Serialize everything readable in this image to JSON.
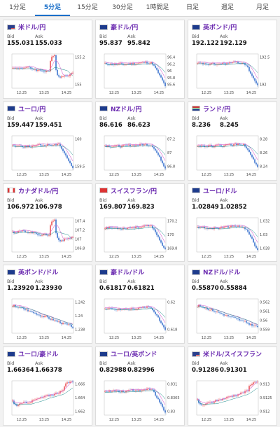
{
  "tabs": [
    "1分足",
    "5分足",
    "15分足",
    "30分足",
    "1時間足",
    "日足",
    "週足",
    "月足"
  ],
  "active_tab": 1,
  "labels": {
    "bid": "Bid",
    "ask": "Ask"
  },
  "colors": {
    "up": "#e8383d",
    "down": "#1f5fc8",
    "ma1": "#d96bd0",
    "ma2": "#1a8a8a",
    "accent": "#1a6fc9",
    "pair_text": "#6b2bb0"
  },
  "cards": [
    {
      "pair": "米ドル/円",
      "flag": "us",
      "bid": "155.031",
      "ask": "155.033",
      "yticks": [
        "155.2",
        "155"
      ],
      "xticks": [
        "12:25",
        "13:25",
        "14:25"
      ],
      "shape": "spike_drop"
    },
    {
      "pair": "豪ドル/円",
      "flag": "au",
      "bid": "95.837",
      "ask": "95.842",
      "yticks": [
        "96.4",
        "96.2",
        "96",
        "95.8",
        "95.6"
      ],
      "xticks": [
        "12:25",
        "13:25",
        "14:25"
      ],
      "shape": "drop"
    },
    {
      "pair": "英ポンド/円",
      "flag": "gb",
      "bid": "192.122",
      "ask": "192.129",
      "yticks": [
        "192.5",
        "192"
      ],
      "xticks": [
        "12:25",
        "13:25",
        "14:25"
      ],
      "shape": "drop"
    },
    {
      "pair": "ユーロ/円",
      "flag": "eu",
      "bid": "159.447",
      "ask": "159.451",
      "yticks": [
        "160",
        "159.5"
      ],
      "xticks": [
        "12:25",
        "13:25",
        "14:25"
      ],
      "shape": "drop"
    },
    {
      "pair": "NZドル/円",
      "flag": "nz",
      "bid": "86.616",
      "ask": "86.623",
      "yticks": [
        "87.2",
        "87",
        "86.8"
      ],
      "xticks": [
        "12:25",
        "13:25",
        "14:25"
      ],
      "shape": "drop"
    },
    {
      "pair": "ランド/円",
      "flag": "za",
      "bid": "8.236",
      "ask": "8.245",
      "yticks": [
        "8.28",
        "8.26",
        "8.24"
      ],
      "xticks": [
        "12:25",
        "13:25",
        "14:25"
      ],
      "shape": "drop"
    },
    {
      "pair": "カナダドル/円",
      "flag": "ca",
      "bid": "106.972",
      "ask": "106.978",
      "yticks": [
        "107.4",
        "107.2",
        "107",
        "106.8"
      ],
      "xticks": [
        "12:25",
        "13:25",
        "14:25"
      ],
      "shape": "spike_drop"
    },
    {
      "pair": "スイスフラン/円",
      "flag": "ch",
      "bid": "169.807",
      "ask": "169.823",
      "yticks": [
        "170.2",
        "170",
        "169.8"
      ],
      "xticks": [
        "12:25",
        "13:25",
        "14:25"
      ],
      "shape": "drop"
    },
    {
      "pair": "ユーロ/ドル",
      "flag": "eu",
      "bid": "1.02849",
      "ask": "1.02852",
      "yticks": [
        "1.032",
        "1.03",
        "1.028"
      ],
      "xticks": [
        "12:25",
        "13:25",
        "14:25"
      ],
      "shape": "drop"
    },
    {
      "pair": "英ポンド/ドル",
      "flag": "gb",
      "bid": "1.23920",
      "ask": "1.23930",
      "yticks": [
        "1.242",
        "1.24",
        "1.238"
      ],
      "xticks": [
        "12:25",
        "13:25",
        "14:25"
      ],
      "shape": "decline"
    },
    {
      "pair": "豪ドル/ドル",
      "flag": "au",
      "bid": "0.61817",
      "ask": "0.61821",
      "yticks": [
        "0.62",
        "0.618"
      ],
      "xticks": [
        "12:25",
        "13:25",
        "14:25"
      ],
      "shape": "drop"
    },
    {
      "pair": "NZドル/ドル",
      "flag": "nz",
      "bid": "0.55870",
      "ask": "0.55884",
      "yticks": [
        "0.562",
        "0.561",
        "0.56",
        "0.559"
      ],
      "xticks": [
        "12:25",
        "13:25",
        "14:25"
      ],
      "shape": "decline"
    },
    {
      "pair": "ユーロ/豪ドル",
      "flag": "eu",
      "bid": "1.66364",
      "ask": "1.66378",
      "yticks": [
        "1.666",
        "1.664",
        "1.662"
      ],
      "xticks": [
        "12:25",
        "13:25",
        "14:25"
      ],
      "shape": "rise"
    },
    {
      "pair": "ユーロ/英ポンド",
      "flag": "eu",
      "bid": "0.82988",
      "ask": "0.82996",
      "yticks": [
        "0.831",
        "0.8305",
        "0.83"
      ],
      "xticks": [
        "12:25",
        "13:25",
        "14:25"
      ],
      "shape": "drop"
    },
    {
      "pair": "米ドル/スイスフラン",
      "flag": "us",
      "bid": "0.91286",
      "ask": "0.91301",
      "yticks": [
        "0.913",
        "0.9125",
        "0.912"
      ],
      "xticks": [
        "12:25",
        "13:25",
        "14:25"
      ],
      "shape": "rise"
    }
  ]
}
